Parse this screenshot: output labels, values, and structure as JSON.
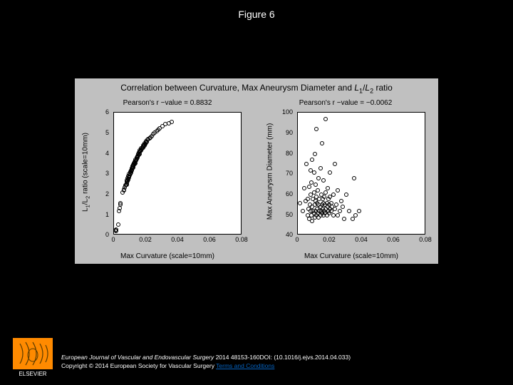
{
  "figure_label": "Figure 6",
  "chart": {
    "title_html": "Correlation between Curvature, Max Aneurysm Diameter and <span style='font-style:italic'>L</span><span class='sub'>1</span>/<span style='font-style:italic'>L</span><span class='sub'>2</span> ratio",
    "background_color": "#c0c0c0",
    "plot_bg": "#ffffff",
    "axis_color": "#000000",
    "marker_edge": "#000000",
    "left": {
      "subtitle": "Pearson's r −value = 0.8832",
      "ylabel_html": "L<span class='sub'>1</span>/L<span class='sub'>2</span> ratio (scale=10mm)",
      "xlabel": "Max Curvature (scale=10mm)",
      "xlim": [
        0,
        0.08
      ],
      "ylim": [
        0,
        6
      ],
      "xticks": [
        0,
        0.02,
        0.04,
        0.06,
        0.08
      ],
      "yticks": [
        0,
        1,
        2,
        3,
        4,
        5,
        6
      ],
      "points": [
        [
          0.001,
          0.25
        ],
        [
          0.0012,
          0.22
        ],
        [
          0.0015,
          0.3
        ],
        [
          0.0025,
          0.55
        ],
        [
          0.003,
          1.2
        ],
        [
          0.0035,
          1.35
        ],
        [
          0.0038,
          1.5
        ],
        [
          0.004,
          1.6
        ],
        [
          0.0055,
          2.1
        ],
        [
          0.006,
          2.25
        ],
        [
          0.0062,
          2.22
        ],
        [
          0.0068,
          2.35
        ],
        [
          0.007,
          2.45
        ],
        [
          0.0075,
          2.48
        ],
        [
          0.0078,
          2.5
        ],
        [
          0.008,
          2.55
        ],
        [
          0.008,
          2.7
        ],
        [
          0.0082,
          2.62
        ],
        [
          0.0085,
          2.68
        ],
        [
          0.0085,
          2.8
        ],
        [
          0.0088,
          2.72
        ],
        [
          0.009,
          2.78
        ],
        [
          0.009,
          2.9
        ],
        [
          0.0092,
          2.85
        ],
        [
          0.0095,
          2.88
        ],
        [
          0.0095,
          3.0
        ],
        [
          0.0098,
          2.95
        ],
        [
          0.01,
          3.05
        ],
        [
          0.01,
          3.12
        ],
        [
          0.0102,
          3.0
        ],
        [
          0.0105,
          3.1
        ],
        [
          0.0105,
          3.2
        ],
        [
          0.0108,
          3.15
        ],
        [
          0.011,
          3.18
        ],
        [
          0.011,
          3.3
        ],
        [
          0.0112,
          3.22
        ],
        [
          0.0115,
          3.28
        ],
        [
          0.0115,
          3.38
        ],
        [
          0.0118,
          3.32
        ],
        [
          0.012,
          3.4
        ],
        [
          0.012,
          3.45
        ],
        [
          0.0122,
          3.38
        ],
        [
          0.0125,
          3.48
        ],
        [
          0.0125,
          3.55
        ],
        [
          0.0128,
          3.5
        ],
        [
          0.013,
          3.58
        ],
        [
          0.013,
          3.62
        ],
        [
          0.0132,
          3.55
        ],
        [
          0.0135,
          3.65
        ],
        [
          0.0135,
          3.72
        ],
        [
          0.0138,
          3.68
        ],
        [
          0.014,
          3.75
        ],
        [
          0.014,
          3.82
        ],
        [
          0.0145,
          3.8
        ],
        [
          0.0145,
          3.88
        ],
        [
          0.0148,
          3.85
        ],
        [
          0.015,
          3.92
        ],
        [
          0.015,
          3.98
        ],
        [
          0.0155,
          3.95
        ],
        [
          0.0155,
          4.05
        ],
        [
          0.0158,
          4.0
        ],
        [
          0.016,
          4.08
        ],
        [
          0.016,
          4.15
        ],
        [
          0.0165,
          4.12
        ],
        [
          0.0168,
          4.2
        ],
        [
          0.017,
          4.18
        ],
        [
          0.017,
          4.28
        ],
        [
          0.0175,
          4.25
        ],
        [
          0.0178,
          4.32
        ],
        [
          0.018,
          4.3
        ],
        [
          0.018,
          4.4
        ],
        [
          0.0185,
          4.38
        ],
        [
          0.0188,
          4.45
        ],
        [
          0.019,
          4.42
        ],
        [
          0.019,
          4.52
        ],
        [
          0.0195,
          4.48
        ],
        [
          0.0198,
          4.55
        ],
        [
          0.02,
          4.55
        ],
        [
          0.02,
          4.62
        ],
        [
          0.0205,
          4.6
        ],
        [
          0.021,
          4.68
        ],
        [
          0.0215,
          4.72
        ],
        [
          0.022,
          4.75
        ],
        [
          0.0225,
          4.8
        ],
        [
          0.0235,
          4.85
        ],
        [
          0.0245,
          4.95
        ],
        [
          0.0255,
          5.05
        ],
        [
          0.0265,
          5.1
        ],
        [
          0.0275,
          5.18
        ],
        [
          0.0285,
          5.25
        ],
        [
          0.03,
          5.35
        ],
        [
          0.032,
          5.45
        ],
        [
          0.034,
          5.5
        ],
        [
          0.036,
          5.55
        ]
      ]
    },
    "right": {
      "subtitle": "Pearson's r −value = −0.0062",
      "ylabel": "Max Aneurysm Diameter (mm)",
      "xlabel": "Max Curvature (scale=10mm)",
      "xlim": [
        0,
        0.08
      ],
      "ylim": [
        40,
        100
      ],
      "xticks": [
        0,
        0.02,
        0.04,
        0.06,
        0.08
      ],
      "yticks": [
        40,
        50,
        60,
        70,
        80,
        90,
        100
      ],
      "points": [
        [
          0.0015,
          56
        ],
        [
          0.003,
          52
        ],
        [
          0.004,
          63
        ],
        [
          0.005,
          57
        ],
        [
          0.0055,
          75
        ],
        [
          0.006,
          50
        ],
        [
          0.006,
          58
        ],
        [
          0.0065,
          53
        ],
        [
          0.007,
          48
        ],
        [
          0.007,
          64
        ],
        [
          0.0075,
          55
        ],
        [
          0.008,
          52
        ],
        [
          0.008,
          60
        ],
        [
          0.008,
          72
        ],
        [
          0.0085,
          50
        ],
        [
          0.0085,
          66
        ],
        [
          0.009,
          47
        ],
        [
          0.009,
          54
        ],
        [
          0.009,
          77
        ],
        [
          0.0095,
          52
        ],
        [
          0.0095,
          58
        ],
        [
          0.01,
          51
        ],
        [
          0.01,
          61
        ],
        [
          0.01,
          71
        ],
        [
          0.0105,
          49
        ],
        [
          0.0105,
          55
        ],
        [
          0.0105,
          80
        ],
        [
          0.011,
          52
        ],
        [
          0.011,
          57
        ],
        [
          0.011,
          65
        ],
        [
          0.0115,
          50
        ],
        [
          0.0115,
          59
        ],
        [
          0.0115,
          92
        ],
        [
          0.012,
          53
        ],
        [
          0.012,
          56
        ],
        [
          0.0125,
          51
        ],
        [
          0.0125,
          62
        ],
        [
          0.013,
          49
        ],
        [
          0.013,
          55
        ],
        [
          0.013,
          68
        ],
        [
          0.0135,
          52
        ],
        [
          0.0135,
          58
        ],
        [
          0.014,
          50
        ],
        [
          0.014,
          54
        ],
        [
          0.014,
          73
        ],
        [
          0.0145,
          52
        ],
        [
          0.0145,
          60
        ],
        [
          0.015,
          51
        ],
        [
          0.015,
          55
        ],
        [
          0.015,
          85
        ],
        [
          0.0155,
          53
        ],
        [
          0.0155,
          58
        ],
        [
          0.016,
          50
        ],
        [
          0.016,
          56
        ],
        [
          0.016,
          67
        ],
        [
          0.0165,
          52
        ],
        [
          0.0165,
          59
        ],
        [
          0.017,
          51
        ],
        [
          0.017,
          55
        ],
        [
          0.0175,
          53
        ],
        [
          0.0175,
          61
        ],
        [
          0.0175,
          97
        ],
        [
          0.018,
          50
        ],
        [
          0.018,
          56
        ],
        [
          0.0185,
          54
        ],
        [
          0.0185,
          63
        ],
        [
          0.019,
          52
        ],
        [
          0.019,
          58
        ],
        [
          0.0195,
          51
        ],
        [
          0.0195,
          55
        ],
        [
          0.02,
          53
        ],
        [
          0.02,
          59
        ],
        [
          0.02,
          71
        ],
        [
          0.021,
          52
        ],
        [
          0.021,
          56
        ],
        [
          0.0215,
          54
        ],
        [
          0.022,
          50
        ],
        [
          0.022,
          60
        ],
        [
          0.023,
          53
        ],
        [
          0.023,
          75
        ],
        [
          0.024,
          55
        ],
        [
          0.025,
          50
        ],
        [
          0.025,
          62
        ],
        [
          0.026,
          52
        ],
        [
          0.027,
          57
        ],
        [
          0.028,
          54
        ],
        [
          0.029,
          48
        ],
        [
          0.03,
          60
        ],
        [
          0.032,
          52
        ],
        [
          0.034,
          48
        ],
        [
          0.035,
          68
        ],
        [
          0.036,
          50
        ],
        [
          0.038,
          52
        ]
      ]
    }
  },
  "footer": {
    "line1_prefix_italic": "European Journal of Vascular and Endovascular Surgery",
    "line1_rest": " 2014 48153-160DOI: (10.1016/j.ejvs.2014.04.033)",
    "line2_prefix": "Copyright © 2014 European Society for Vascular Surgery ",
    "line2_link": "Terms and Conditions"
  },
  "logo_text": "ELSEVIER",
  "colors": {
    "page_bg": "#000000",
    "logo_orange": "#ff8a00",
    "logo_text": "#ffffff"
  }
}
